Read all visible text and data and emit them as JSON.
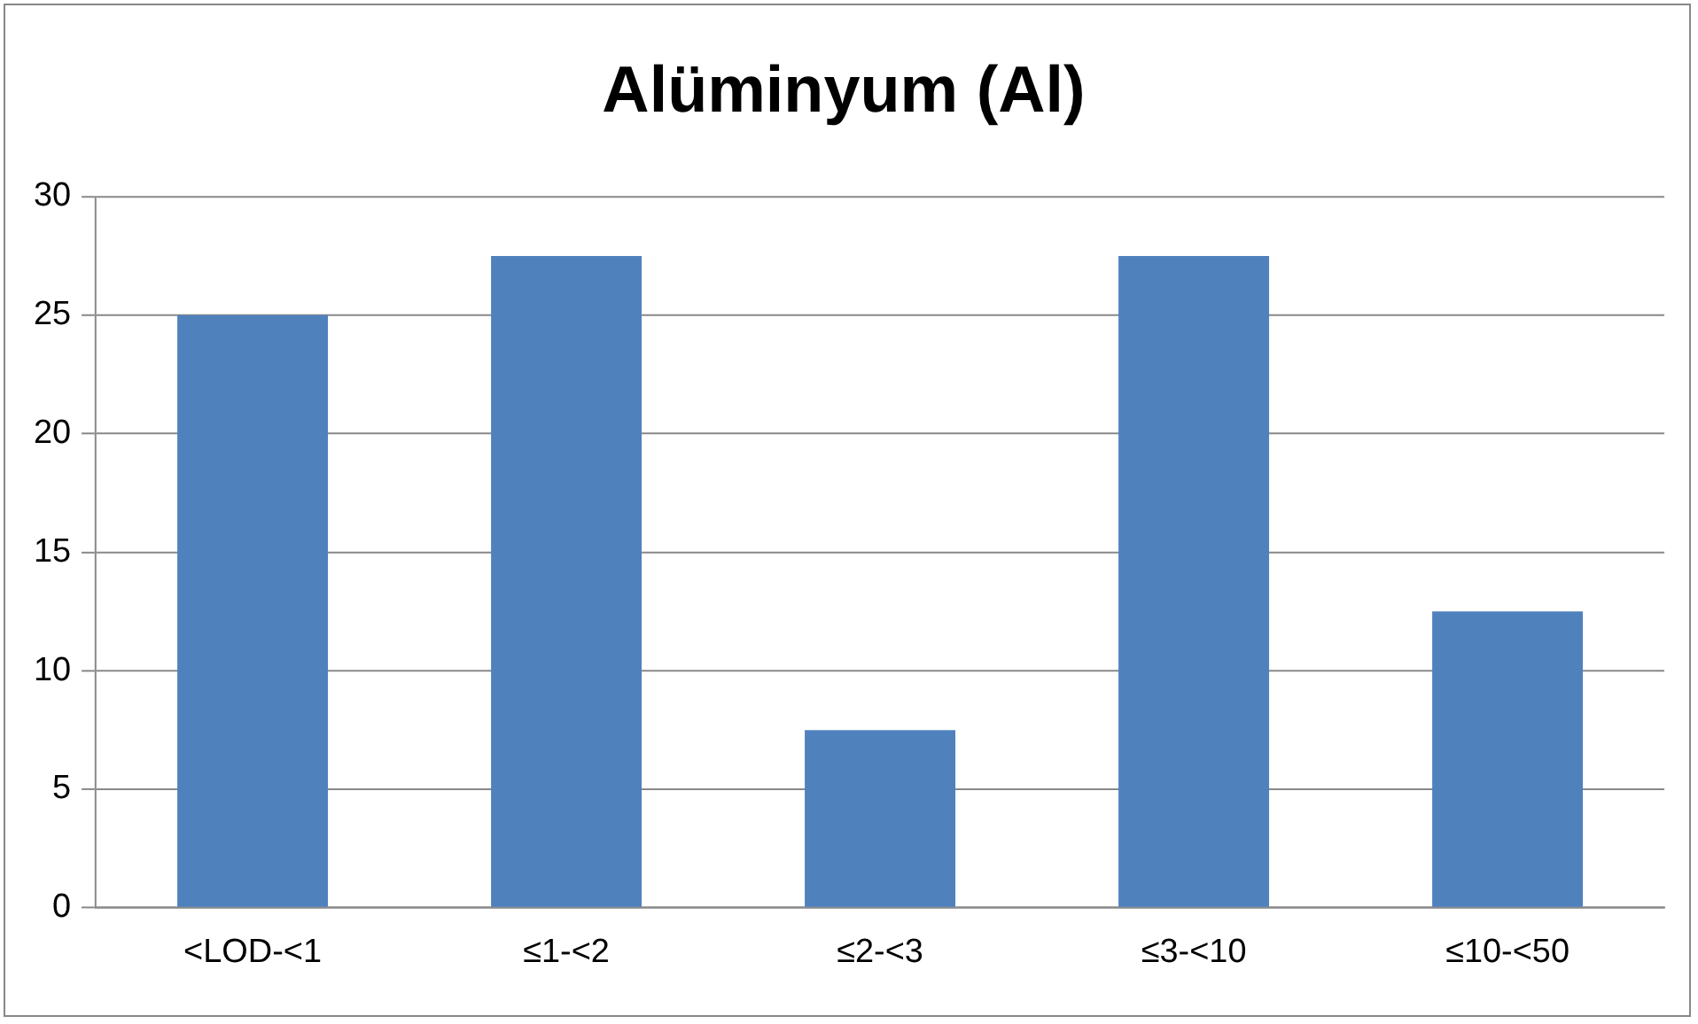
{
  "chart_data": {
    "type": "bar",
    "title": "Alüminyum (Al)",
    "categories": [
      "<LOD-<1",
      "≤1-<2",
      "≤2-<3",
      "≤3-<10",
      "≤10-<50"
    ],
    "values": [
      25,
      27.5,
      7.5,
      27.5,
      12.5
    ],
    "color": "#4f81bd",
    "ylim": [
      0,
      30
    ],
    "yticks": [
      0,
      5,
      10,
      15,
      20,
      25,
      30
    ],
    "grid": "y",
    "legend": false
  }
}
